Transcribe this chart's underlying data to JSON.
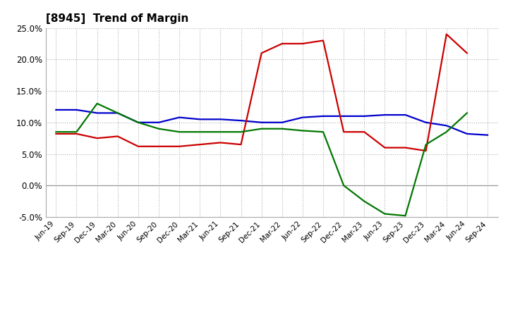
{
  "title": "[8945]  Trend of Margin",
  "x_labels": [
    "Jun-19",
    "Sep-19",
    "Dec-19",
    "Mar-20",
    "Jun-20",
    "Sep-20",
    "Dec-20",
    "Mar-21",
    "Jun-21",
    "Sep-21",
    "Dec-21",
    "Mar-22",
    "Jun-22",
    "Sep-22",
    "Dec-22",
    "Mar-23",
    "Jun-23",
    "Sep-23",
    "Dec-23",
    "Mar-24",
    "Jun-24",
    "Sep-24"
  ],
  "ordinary_income": [
    12.0,
    12.0,
    11.5,
    11.5,
    10.0,
    10.0,
    10.8,
    10.5,
    10.5,
    10.3,
    10.0,
    10.0,
    10.8,
    11.0,
    11.0,
    11.0,
    11.2,
    11.2,
    10.0,
    9.5,
    8.2,
    8.0
  ],
  "net_income": [
    8.2,
    8.2,
    7.5,
    7.8,
    6.2,
    6.2,
    6.2,
    6.5,
    6.8,
    6.5,
    21.0,
    22.5,
    22.5,
    23.0,
    8.5,
    8.5,
    6.0,
    6.0,
    5.5,
    24.0,
    21.0,
    null
  ],
  "operating_cashflow": [
    8.5,
    8.5,
    13.0,
    11.5,
    10.0,
    9.0,
    8.5,
    8.5,
    8.5,
    8.5,
    9.0,
    9.0,
    8.7,
    8.5,
    0.0,
    -2.5,
    -4.5,
    -4.8,
    6.5,
    8.5,
    11.5,
    null
  ],
  "ylim": [
    -5.0,
    25.0
  ],
  "yticks": [
    -5.0,
    0.0,
    5.0,
    10.0,
    15.0,
    20.0,
    25.0
  ],
  "line_colors": {
    "ordinary_income": "#0000cc",
    "net_income": "#cc0000",
    "operating_cashflow": "#007700"
  },
  "background_color": "#ffffff",
  "grid_color": "#b0b0b0"
}
